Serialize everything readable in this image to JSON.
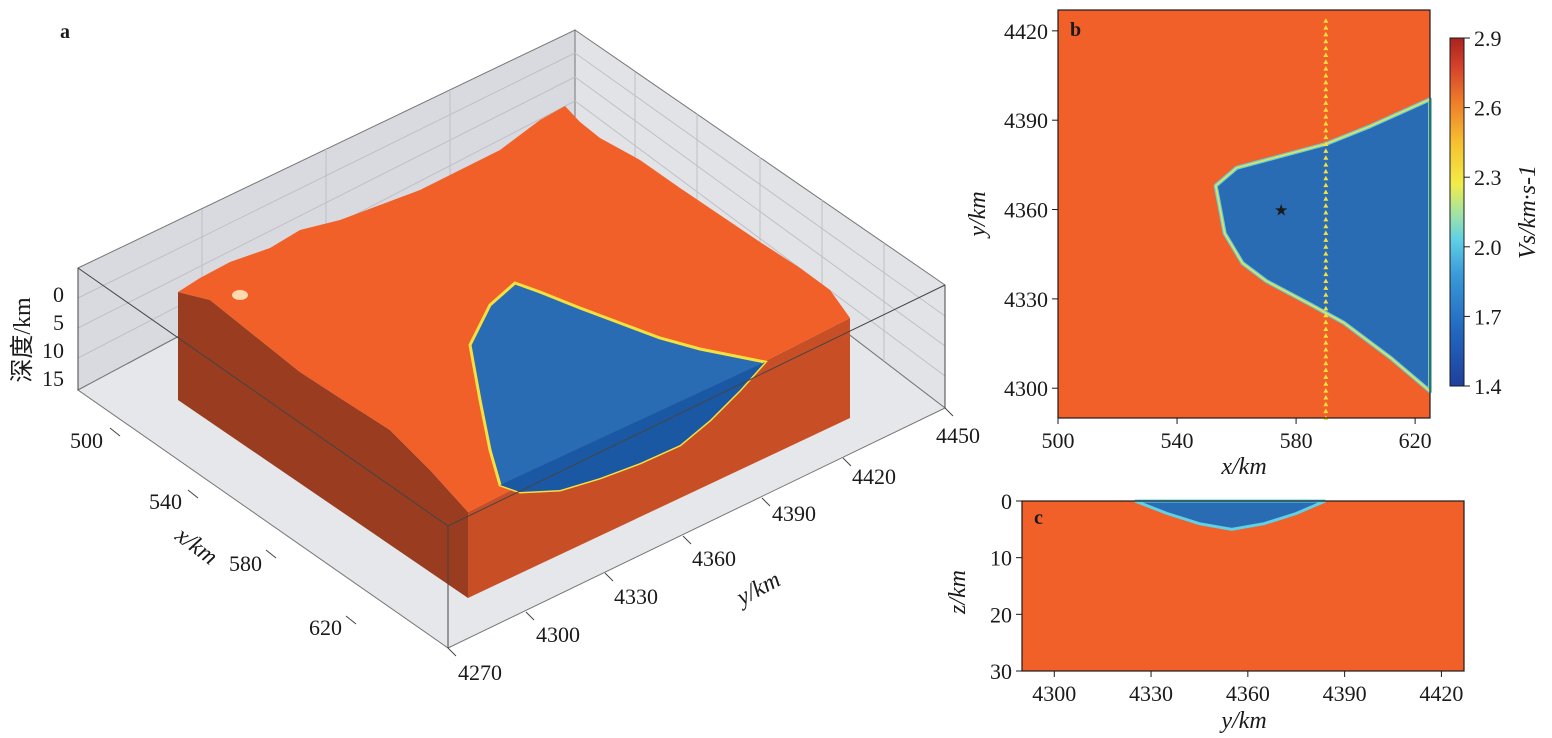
{
  "colors": {
    "sediment_blue": "#2a6cb3",
    "bedrock_orange": "#f06028",
    "bedrock_side": "#c84f25",
    "bedrock_dark_side": "#9a3c20",
    "station_yellow": "#f5e040",
    "grid_bg": "#dcdde1"
  },
  "chart_data": [
    {
      "panel": "a",
      "type": "3d-surface",
      "label": "a",
      "zlabel": "深度/km",
      "xlabel": "x/km",
      "ylabel": "y/km",
      "z_ticks": [
        "0",
        "5",
        "10",
        "15"
      ],
      "x_ticks": [
        "500",
        "540",
        "580",
        "620"
      ],
      "y_ticks": [
        "4270",
        "4300",
        "4330",
        "4360",
        "4390",
        "4420",
        "4450"
      ],
      "description_values": {
        "basin_max_depth_km": 5
      }
    },
    {
      "panel": "b",
      "type": "heatmap",
      "label": "b",
      "xlabel": "x/km",
      "ylabel": "y/km",
      "xlim": [
        500,
        625
      ],
      "ylim": [
        4290,
        4427
      ],
      "x_ticks": [
        "500",
        "540",
        "580",
        "620"
      ],
      "y_ticks": [
        "4300",
        "4330",
        "4360",
        "4390",
        "4420"
      ],
      "basin_polygon_km": [
        [
          553,
          4368
        ],
        [
          560,
          4374
        ],
        [
          575,
          4378
        ],
        [
          590,
          4382
        ],
        [
          605,
          4388
        ],
        [
          625,
          4397
        ],
        [
          625,
          4299
        ],
        [
          612,
          4310
        ],
        [
          596,
          4322
        ],
        [
          585,
          4328
        ],
        [
          570,
          4336
        ],
        [
          562,
          4342
        ],
        [
          556,
          4352
        ]
      ],
      "station_line_x_km": 590,
      "star_location_km": [
        575,
        4360
      ],
      "colorbar": {
        "label": "Vs/km·s-1",
        "min": 1.4,
        "max": 2.9,
        "ticks": [
          "2.9",
          "2.6",
          "2.3",
          "2.0",
          "1.7",
          "1.4"
        ]
      }
    },
    {
      "panel": "c",
      "type": "heatmap",
      "label": "c",
      "xlabel": "y/km",
      "ylabel": "z/km",
      "xlim": [
        4290,
        4427
      ],
      "ylim": [
        0,
        30
      ],
      "x_ticks": [
        "4300",
        "4330",
        "4360",
        "4390",
        "4420"
      ],
      "y_ticks": [
        "0",
        "10",
        "20",
        "30"
      ],
      "basin_profile_km": [
        [
          4325,
          0
        ],
        [
          4335,
          2.2
        ],
        [
          4345,
          4
        ],
        [
          4355,
          5
        ],
        [
          4365,
          4
        ],
        [
          4375,
          2.2
        ],
        [
          4384,
          0
        ]
      ]
    }
  ]
}
